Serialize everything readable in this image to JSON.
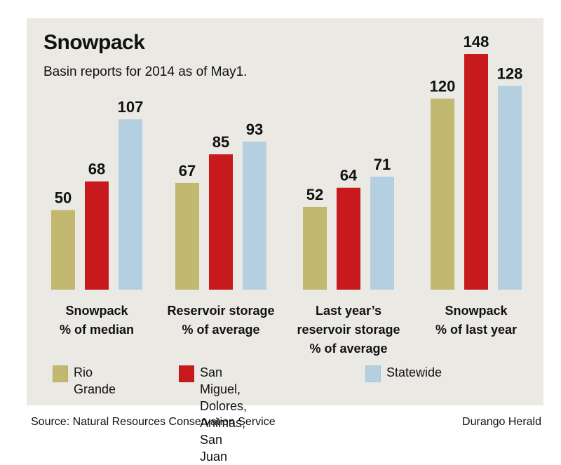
{
  "title": "Snowpack",
  "subtitle": "Basin reports for 2014 as of May1.",
  "source": "Source: Natural Resources Conservation Service",
  "credit": "Durango Herald",
  "colors": {
    "rio_grande": "#c2b86f",
    "san_miguel": "#c8191d",
    "statewide": "#b4d0e0",
    "panel": "#ebe9e4"
  },
  "legend": [
    {
      "label": "Rio Grande",
      "color": "#c2b86f"
    },
    {
      "label_line1": "San Miguel, Dolores,",
      "label_line2": "Animas, San Juan",
      "color": "#c8191d"
    },
    {
      "label": "Statewide",
      "color": "#b4d0e0"
    }
  ],
  "chart_data": {
    "type": "bar",
    "title": "Snowpack",
    "subtitle": "Basin reports for 2014 as of May1.",
    "categories": [
      [
        "Snowpack",
        "% of median"
      ],
      [
        "Reservoir storage",
        "% of average"
      ],
      [
        "Last year’s",
        "reservoir storage",
        "% of average"
      ],
      [
        "Snowpack",
        "% of last year"
      ]
    ],
    "series": [
      {
        "name": "Rio Grande",
        "values": [
          50,
          67,
          52,
          120
        ]
      },
      {
        "name": "San Miguel, Dolores, Animas, San Juan",
        "values": [
          68,
          85,
          64,
          148
        ]
      },
      {
        "name": "Statewide",
        "values": [
          107,
          93,
          71,
          128
        ]
      }
    ],
    "data_labels": true,
    "grid": false,
    "legend_position": "bottom"
  }
}
